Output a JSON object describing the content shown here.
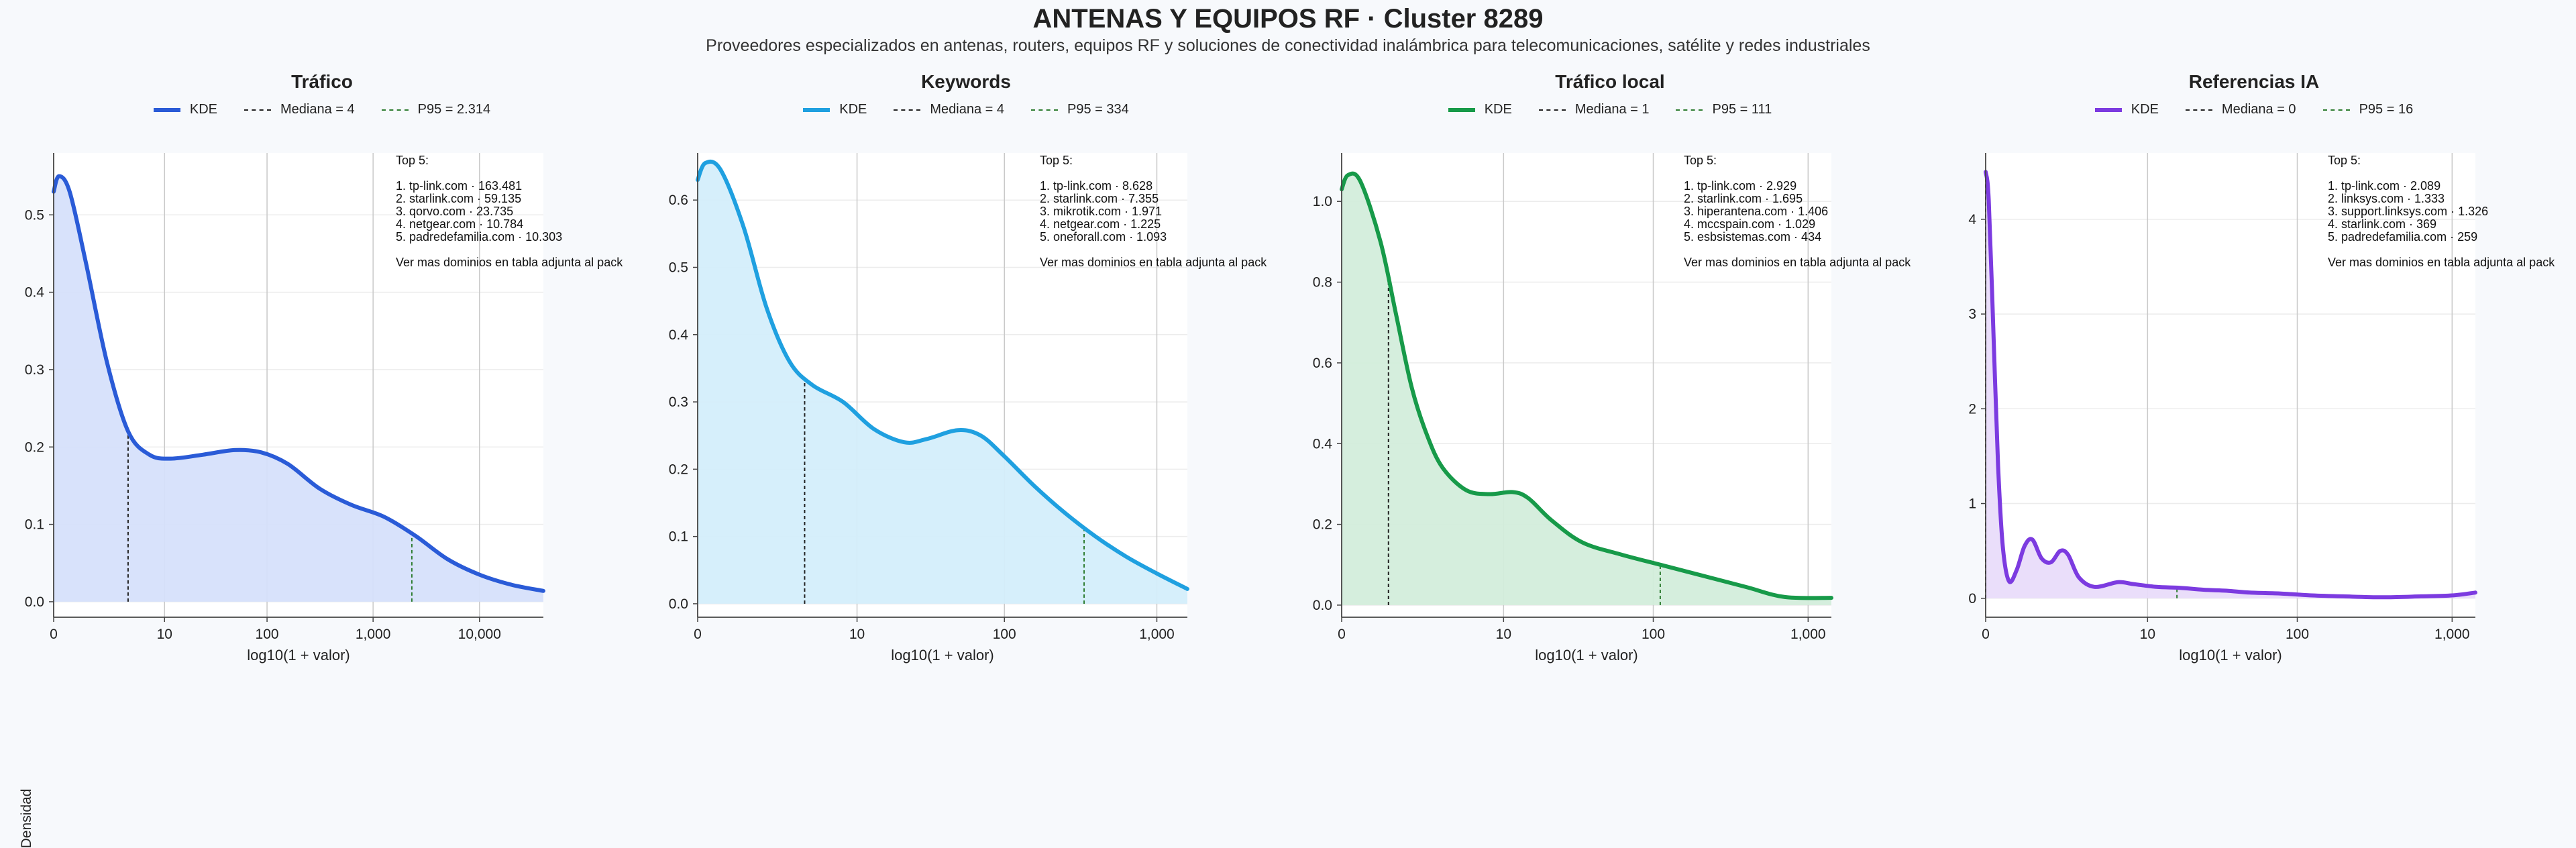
{
  "header": {
    "title": "ANTENAS Y EQUIPOS RF · Cluster 8289",
    "subtitle": "Proveedores especializados en antenas, routers, equipos RF y soluciones de conectividad inalámbrica para telecomunicaciones, satélite y redes industriales"
  },
  "y_axis_title": "Densidad",
  "colors": {
    "median": "#222222",
    "p95": "#2f7d32"
  },
  "chart_data": [
    {
      "type": "area",
      "title": "Tráfico",
      "xlabel": "log10(1 + valor)",
      "ylabel": "Densidad",
      "color": "#2a5bd7",
      "fill": "#d6e0fb",
      "x_scale": "log10(1+x)",
      "xlim": [
        0,
        4.6
      ],
      "ylim": [
        -0.02,
        0.58
      ],
      "x_ticks": [
        0,
        10,
        100,
        1000,
        10000
      ],
      "x_tick_labels": [
        "0",
        "10",
        "100",
        "1,000",
        "10,000"
      ],
      "y_ticks": [
        0.0,
        0.1,
        0.2,
        0.3,
        0.4,
        0.5
      ],
      "y_tick_labels": [
        "0.0",
        "0.1",
        "0.2",
        "0.3",
        "0.4",
        "0.5"
      ],
      "legend": {
        "kde": "KDE",
        "median": "Mediana = 4",
        "p95": "P95 = 2.314"
      },
      "median": 4,
      "p95": 2314,
      "kde": [
        [
          0,
          0.53
        ],
        [
          0.05,
          0.55
        ],
        [
          0.15,
          0.53
        ],
        [
          0.3,
          0.44
        ],
        [
          0.5,
          0.31
        ],
        [
          0.7,
          0.22
        ],
        [
          0.9,
          0.19
        ],
        [
          1.1,
          0.185
        ],
        [
          1.4,
          0.19
        ],
        [
          1.7,
          0.196
        ],
        [
          1.95,
          0.193
        ],
        [
          2.2,
          0.178
        ],
        [
          2.5,
          0.146
        ],
        [
          2.8,
          0.125
        ],
        [
          3.1,
          0.11
        ],
        [
          3.4,
          0.085
        ],
        [
          3.7,
          0.055
        ],
        [
          4.0,
          0.035
        ],
        [
          4.3,
          0.022
        ],
        [
          4.6,
          0.014
        ]
      ],
      "annotation": [
        "Top 5:",
        "",
        "1. tp-link.com · 163.481",
        "2. starlink.com · 59.135",
        "3. qorvo.com · 23.735",
        "4. netgear.com · 10.784",
        "5. padredefamilia.com · 10.303",
        "",
        "Ver mas dominios en tabla adjunta al pack"
      ]
    },
    {
      "type": "area",
      "title": "Keywords",
      "xlabel": "log10(1 + valor)",
      "color": "#1fa0e0",
      "fill": "#d4eefb",
      "x_scale": "log10(1+x)",
      "xlim": [
        0,
        3.2
      ],
      "ylim": [
        -0.02,
        0.67
      ],
      "x_ticks": [
        0,
        10,
        100,
        1000
      ],
      "x_tick_labels": [
        "0",
        "10",
        "100",
        "1,000"
      ],
      "y_ticks": [
        0.0,
        0.1,
        0.2,
        0.3,
        0.4,
        0.5,
        0.6
      ],
      "y_tick_labels": [
        "0.0",
        "0.1",
        "0.2",
        "0.3",
        "0.4",
        "0.5",
        "0.6"
      ],
      "legend": {
        "kde": "KDE",
        "median": "Mediana = 4",
        "p95": "P95 = 334"
      },
      "median": 4,
      "p95": 334,
      "kde": [
        [
          0,
          0.63
        ],
        [
          0.05,
          0.655
        ],
        [
          0.15,
          0.645
        ],
        [
          0.3,
          0.56
        ],
        [
          0.45,
          0.44
        ],
        [
          0.6,
          0.36
        ],
        [
          0.75,
          0.325
        ],
        [
          0.95,
          0.3
        ],
        [
          1.15,
          0.26
        ],
        [
          1.35,
          0.24
        ],
        [
          1.5,
          0.245
        ],
        [
          1.7,
          0.258
        ],
        [
          1.85,
          0.25
        ],
        [
          2.0,
          0.22
        ],
        [
          2.2,
          0.175
        ],
        [
          2.4,
          0.135
        ],
        [
          2.6,
          0.1
        ],
        [
          2.8,
          0.07
        ],
        [
          3.0,
          0.045
        ],
        [
          3.2,
          0.022
        ]
      ],
      "annotation": [
        "Top 5:",
        "",
        "1. tp-link.com · 8.628",
        "2. starlink.com · 7.355",
        "3. mikrotik.com · 1.971",
        "4. netgear.com · 1.225",
        "5. oneforall.com · 1.093",
        "",
        "Ver mas dominios en tabla adjunta al pack"
      ]
    },
    {
      "type": "area",
      "title": "Tráfico local",
      "xlabel": "log10(1 + valor)",
      "color": "#179a49",
      "fill": "#d3eddb",
      "x_scale": "log10(1+x)",
      "xlim": [
        0,
        3.15
      ],
      "ylim": [
        -0.03,
        1.12
      ],
      "x_ticks": [
        0,
        10,
        100,
        1000
      ],
      "x_tick_labels": [
        "0",
        "10",
        "100",
        "1,000"
      ],
      "y_ticks": [
        0.0,
        0.2,
        0.4,
        0.6,
        0.8,
        1.0
      ],
      "y_tick_labels": [
        "0.0",
        "0.2",
        "0.4",
        "0.6",
        "0.8",
        "1.0"
      ],
      "legend": {
        "kde": "KDE",
        "median": "Mediana = 1",
        "p95": "P95 = 111"
      },
      "median": 1,
      "p95": 111,
      "kde": [
        [
          0,
          1.03
        ],
        [
          0.04,
          1.065
        ],
        [
          0.12,
          1.05
        ],
        [
          0.25,
          0.9
        ],
        [
          0.35,
          0.72
        ],
        [
          0.45,
          0.54
        ],
        [
          0.55,
          0.42
        ],
        [
          0.65,
          0.34
        ],
        [
          0.8,
          0.285
        ],
        [
          0.95,
          0.275
        ],
        [
          1.1,
          0.28
        ],
        [
          1.2,
          0.265
        ],
        [
          1.35,
          0.21
        ],
        [
          1.55,
          0.155
        ],
        [
          1.8,
          0.125
        ],
        [
          2.05,
          0.1
        ],
        [
          2.3,
          0.075
        ],
        [
          2.6,
          0.045
        ],
        [
          2.85,
          0.02
        ],
        [
          3.15,
          0.018
        ]
      ],
      "annotation": [
        "Top 5:",
        "",
        "1. tp-link.com · 2.929",
        "2. starlink.com · 1.695",
        "3. hiperantena.com · 1.406",
        "4. mccspain.com · 1.029",
        "5. esbsistemas.com · 434",
        "",
        "Ver mas dominios en tabla adjunta al pack"
      ]
    },
    {
      "type": "area",
      "title": "Referencias IA",
      "xlabel": "log10(1 + valor)",
      "color": "#7c3be0",
      "fill": "#e9dcfa",
      "x_scale": "log10(1+x)",
      "xlim": [
        0,
        3.15
      ],
      "ylim": [
        -0.2,
        4.7
      ],
      "x_ticks": [
        0,
        10,
        100,
        1000
      ],
      "x_tick_labels": [
        "0",
        "10",
        "100",
        "1,000"
      ],
      "y_ticks": [
        0,
        1,
        2,
        3,
        4
      ],
      "y_tick_labels": [
        "0",
        "1",
        "2",
        "3",
        "4"
      ],
      "legend": {
        "kde": "KDE",
        "median": "Mediana = 0",
        "p95": "P95 = 16"
      },
      "median": 0,
      "p95": 16,
      "kde": [
        [
          0,
          4.5
        ],
        [
          0.02,
          4.2
        ],
        [
          0.05,
          2.8
        ],
        [
          0.08,
          1.4
        ],
        [
          0.11,
          0.55
        ],
        [
          0.15,
          0.18
        ],
        [
          0.2,
          0.3
        ],
        [
          0.25,
          0.55
        ],
        [
          0.3,
          0.62
        ],
        [
          0.36,
          0.42
        ],
        [
          0.42,
          0.38
        ],
        [
          0.48,
          0.5
        ],
        [
          0.53,
          0.46
        ],
        [
          0.6,
          0.22
        ],
        [
          0.7,
          0.12
        ],
        [
          0.85,
          0.17
        ],
        [
          0.95,
          0.15
        ],
        [
          1.1,
          0.12
        ],
        [
          1.25,
          0.11
        ],
        [
          1.4,
          0.09
        ],
        [
          1.55,
          0.08
        ],
        [
          1.7,
          0.06
        ],
        [
          1.9,
          0.05
        ],
        [
          2.1,
          0.03
        ],
        [
          2.3,
          0.02
        ],
        [
          2.55,
          0.01
        ],
        [
          2.8,
          0.02
        ],
        [
          3.0,
          0.03
        ],
        [
          3.15,
          0.06
        ]
      ],
      "annotation": [
        "Top 5:",
        "",
        "1. tp-link.com · 2.089",
        "2. linksys.com · 1.333",
        "3. support.linksys.com · 1.326",
        "4. starlink.com · 369",
        "5. padredefamilia.com · 259",
        "",
        "Ver mas dominios en tabla adjunta al pack"
      ]
    }
  ]
}
